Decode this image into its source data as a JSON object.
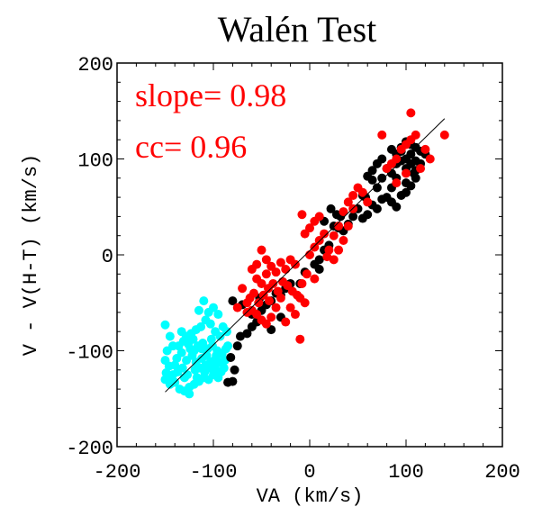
{
  "chart_data": {
    "type": "scatter",
    "title": "Walén Test",
    "xlabel": "VA (km/s)",
    "ylabel": "V - V(H-T) (km/s)",
    "xlim": [
      -200,
      200
    ],
    "ylim": [
      -200,
      200
    ],
    "xticks": [
      "-200",
      "-100",
      "0",
      "100",
      "200"
    ],
    "yticks": [
      "-200",
      "-100",
      "0",
      "100",
      "200"
    ],
    "grid": false,
    "annotations": [
      {
        "text": "slope= 0.98",
        "color": "#ff0000"
      },
      {
        "text": "cc= 0.96",
        "color": "#ff0000"
      }
    ],
    "fit_line": {
      "x": [
        -150,
        140
      ],
      "y": [
        -143,
        142
      ],
      "color": "#000000"
    },
    "series": [
      {
        "color": "#00ffff",
        "points": [
          [
            -150,
            -73
          ],
          [
            -145,
            -85
          ],
          [
            -142,
            -95
          ],
          [
            -148,
            -100
          ],
          [
            -150,
            -110
          ],
          [
            -146,
            -116
          ],
          [
            -149,
            -123
          ],
          [
            -142,
            -125
          ],
          [
            -140,
            -133
          ],
          [
            -135,
            -140
          ],
          [
            -130,
            -142
          ],
          [
            -125,
            -138
          ],
          [
            -120,
            -135
          ],
          [
            -115,
            -132
          ],
          [
            -110,
            -128
          ],
          [
            -105,
            -130
          ],
          [
            -100,
            -125
          ],
          [
            -95,
            -128
          ],
          [
            -92,
            -122
          ],
          [
            -98,
            -118
          ],
          [
            -103,
            -112
          ],
          [
            -108,
            -115
          ],
          [
            -112,
            -108
          ],
          [
            -118,
            -112
          ],
          [
            -122,
            -105
          ],
          [
            -128,
            -110
          ],
          [
            -133,
            -102
          ],
          [
            -138,
            -108
          ],
          [
            -136,
            -95
          ],
          [
            -131,
            -90
          ],
          [
            -126,
            -93
          ],
          [
            -121,
            -88
          ],
          [
            -116,
            -95
          ],
          [
            -111,
            -92
          ],
          [
            -106,
            -98
          ],
          [
            -101,
            -95
          ],
          [
            -96,
            -100
          ],
          [
            -91,
            -103
          ],
          [
            -88,
            -110
          ],
          [
            -93,
            -85
          ],
          [
            -98,
            -80
          ],
          [
            -103,
            -72
          ],
          [
            -108,
            -68
          ],
          [
            -113,
            -75
          ],
          [
            -118,
            -78
          ],
          [
            -123,
            -82
          ],
          [
            -128,
            -85
          ],
          [
            -133,
            -80
          ],
          [
            -110,
            -48
          ],
          [
            -115,
            -58
          ],
          [
            -100,
            -55
          ],
          [
            -95,
            -62
          ],
          [
            -105,
            -60
          ],
          [
            -90,
            -75
          ],
          [
            -86,
            -80
          ],
          [
            -85,
            -95
          ],
          [
            -140,
            -115
          ],
          [
            -144,
            -128
          ],
          [
            -137,
            -122
          ],
          [
            -132,
            -118
          ],
          [
            -127,
            -125
          ],
          [
            -119,
            -120
          ],
          [
            -114,
            -118
          ],
          [
            -109,
            -122
          ],
          [
            -104,
            -118
          ],
          [
            -99,
            -110
          ],
          [
            -94,
            -112
          ],
          [
            -89,
            -118
          ],
          [
            -97,
            -105
          ],
          [
            -112,
            -98
          ],
          [
            -124,
            -98
          ],
          [
            -130,
            -128
          ],
          [
            -145,
            -135
          ],
          [
            -150,
            -130
          ],
          [
            -125,
            -145
          ],
          [
            -117,
            -128
          ],
          [
            -107,
            -105
          ],
          [
            -120,
            -100
          ],
          [
            -102,
            -88
          ],
          [
            -87,
            -98
          ]
        ]
      },
      {
        "color": "#000000",
        "points": [
          [
            -85,
            -133
          ],
          [
            -80,
            -132
          ],
          [
            -78,
            -120
          ],
          [
            -82,
            -107
          ],
          [
            -75,
            -95
          ],
          [
            -72,
            -85
          ],
          [
            -65,
            -82
          ],
          [
            -60,
            -75
          ],
          [
            -80,
            -48
          ],
          [
            -70,
            -52
          ],
          [
            -60,
            -62
          ],
          [
            -55,
            -70
          ],
          [
            -50,
            -58
          ],
          [
            -45,
            -52
          ],
          [
            -52,
            -45
          ],
          [
            -40,
            -48
          ],
          [
            -35,
            -40
          ],
          [
            -30,
            -42
          ],
          [
            -25,
            -35
          ],
          [
            -20,
            -30
          ],
          [
            -10,
            -30
          ],
          [
            -5,
            -18
          ],
          [
            5,
            -10
          ],
          [
            10,
            -15
          ],
          [
            15,
            5
          ],
          [
            20,
            10
          ],
          [
            25,
            30
          ],
          [
            30,
            28
          ],
          [
            35,
            25
          ],
          [
            32,
            40
          ],
          [
            28,
            42
          ],
          [
            22,
            48
          ],
          [
            40,
            32
          ],
          [
            45,
            40
          ],
          [
            50,
            48
          ],
          [
            55,
            38
          ],
          [
            60,
            42
          ],
          [
            65,
            52
          ],
          [
            70,
            48
          ],
          [
            75,
            58
          ],
          [
            80,
            60
          ],
          [
            85,
            55
          ],
          [
            90,
            50
          ],
          [
            95,
            62
          ],
          [
            100,
            65
          ],
          [
            105,
            72
          ],
          [
            110,
            80
          ],
          [
            100,
            90
          ],
          [
            95,
            98
          ],
          [
            90,
            95
          ],
          [
            85,
            85
          ],
          [
            80,
            90
          ],
          [
            75,
            100
          ],
          [
            70,
            95
          ],
          [
            65,
            88
          ],
          [
            60,
            82
          ],
          [
            85,
            110
          ],
          [
            90,
            105
          ],
          [
            95,
            108
          ],
          [
            100,
            100
          ],
          [
            105,
            95
          ],
          [
            110,
            98
          ],
          [
            115,
            108
          ],
          [
            110,
            112
          ],
          [
            105,
            115
          ],
          [
            100,
            118
          ],
          [
            95,
            112
          ],
          [
            105,
            105
          ],
          [
            65,
            78
          ],
          [
            58,
            60
          ],
          [
            100,
            75
          ],
          [
            110,
            88
          ],
          [
            85,
            70
          ],
          [
            75,
            80
          ],
          [
            90,
            80
          ],
          [
            115,
            95
          ],
          [
            55,
            62
          ],
          [
            70,
            70
          ],
          [
            -40,
            -78
          ],
          [
            -30,
            -65
          ],
          [
            10,
            -5
          ],
          [
            15,
            35
          ],
          [
            120,
            105
          ],
          [
            108,
            85
          ]
        ]
      },
      {
        "color": "#ff0000",
        "points": [
          [
            -65,
            -50
          ],
          [
            -60,
            -58
          ],
          [
            -55,
            -62
          ],
          [
            -50,
            -68
          ],
          [
            -45,
            -72
          ],
          [
            -40,
            -65
          ],
          [
            -35,
            -55
          ],
          [
            -62,
            -45
          ],
          [
            -58,
            -40
          ],
          [
            -53,
            -50
          ],
          [
            -48,
            -42
          ],
          [
            -43,
            -35
          ],
          [
            -38,
            -30
          ],
          [
            -33,
            -38
          ],
          [
            -28,
            -28
          ],
          [
            -23,
            -32
          ],
          [
            -18,
            -38
          ],
          [
            -13,
            -42
          ],
          [
            -8,
            -30
          ],
          [
            -3,
            -20
          ],
          [
            -50,
            -30
          ],
          [
            -45,
            -20
          ],
          [
            -40,
            -12
          ],
          [
            -35,
            -18
          ],
          [
            -30,
            -8
          ],
          [
            -25,
            -15
          ],
          [
            -20,
            -5
          ],
          [
            -15,
            -10
          ],
          [
            -10,
            -45
          ],
          [
            -5,
            -50
          ],
          [
            -55,
            -25
          ],
          [
            -42,
            -48
          ],
          [
            -20,
            -55
          ],
          [
            -15,
            -62
          ],
          [
            -25,
            -70
          ],
          [
            -10,
            -88
          ],
          [
            0,
            0
          ],
          [
            5,
            8
          ],
          [
            10,
            15
          ],
          [
            15,
            22
          ],
          [
            20,
            5
          ],
          [
            25,
            20
          ],
          [
            30,
            30
          ],
          [
            35,
            45
          ],
          [
            40,
            55
          ],
          [
            45,
            48
          ],
          [
            40,
            30
          ],
          [
            35,
            15
          ],
          [
            10,
            40
          ],
          [
            5,
            35
          ],
          [
            0,
            28
          ],
          [
            -5,
            22
          ],
          [
            -8,
            42
          ],
          [
            80,
            90
          ],
          [
            85,
            95
          ],
          [
            90,
            100
          ],
          [
            95,
            110
          ],
          [
            100,
            115
          ],
          [
            105,
            120
          ],
          [
            110,
            125
          ],
          [
            75,
            125
          ],
          [
            105,
            148
          ],
          [
            140,
            125
          ],
          [
            120,
            110
          ],
          [
            125,
            100
          ],
          [
            115,
            90
          ],
          [
            60,
            55
          ],
          [
            55,
            65
          ],
          [
            50,
            70
          ],
          [
            45,
            62
          ],
          [
            -45,
            -5
          ],
          [
            -50,
            5
          ],
          [
            -55,
            -10
          ],
          [
            -60,
            -15
          ],
          [
            25,
            -5
          ],
          [
            30,
            5
          ],
          [
            -70,
            -35
          ],
          [
            -75,
            -55
          ],
          [
            -65,
            -60
          ],
          [
            -30,
            -45
          ],
          [
            5,
            -25
          ],
          [
            100,
            85
          ],
          [
            90,
            75
          ],
          [
            18,
            -2
          ]
        ]
      }
    ]
  }
}
